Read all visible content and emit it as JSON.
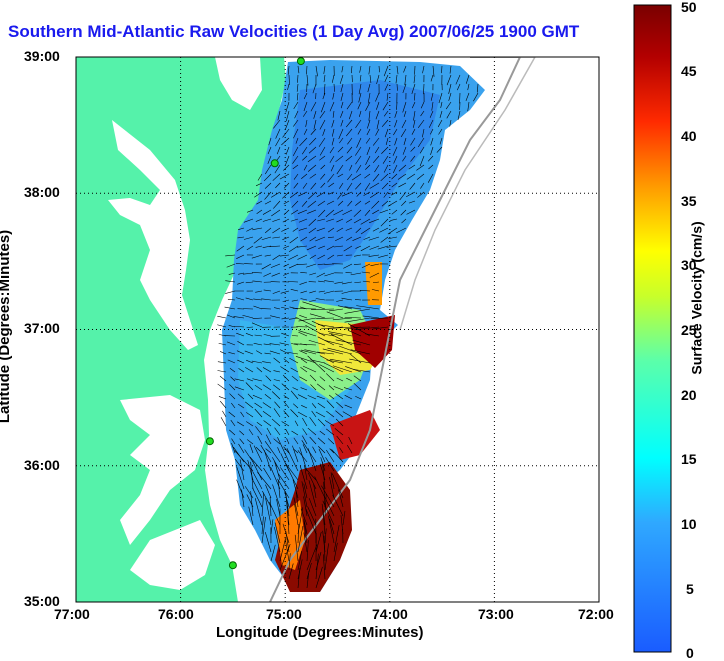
{
  "title": "Southern Mid-Atlantic Raw Velocities (1 Day Avg) 2007/06/25 1900 GMT",
  "xlabel": "Longitude (Degrees:Minutes)",
  "ylabel": "Latitude (Degrees:Minutes)",
  "x_ticks": [
    "77:00",
    "76:00",
    "75:00",
    "74:00",
    "73:00",
    "72:00"
  ],
  "y_ticks": [
    "39:00",
    "38:00",
    "37:00",
    "36:00",
    "35:00"
  ],
  "colorbar": {
    "label": "Surface Velocity (cm/s)",
    "ticks": [
      "50",
      "45",
      "40",
      "35",
      "30",
      "25",
      "20",
      "15",
      "10",
      "5",
      "0"
    ],
    "range": [
      0,
      50
    ],
    "low_color": "#1a5cff",
    "high_color": "#7a0000"
  },
  "map": {
    "land_color": "#55f2aa",
    "water_color": "#ffffff",
    "lon_range": [
      -77,
      -72
    ],
    "lat_range": [
      35,
      39
    ],
    "grid": true,
    "stations": [
      {
        "lon": -74.85,
        "lat": 38.97
      },
      {
        "lon": -75.1,
        "lat": 38.22
      },
      {
        "lon": -75.72,
        "lat": 36.18
      },
      {
        "lon": -75.5,
        "lat": 35.27
      }
    ]
  }
}
